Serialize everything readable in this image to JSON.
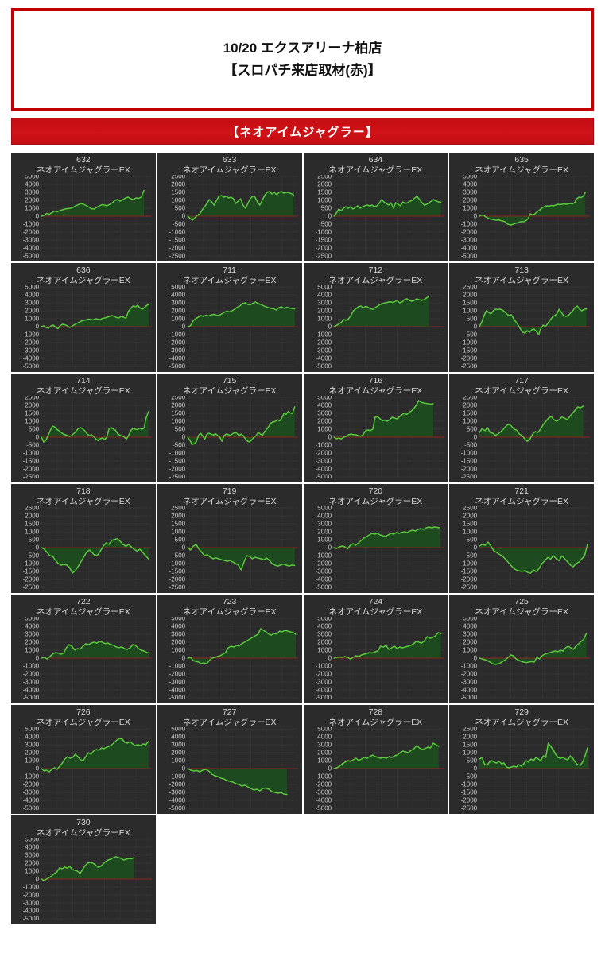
{
  "header": {
    "title_line1": "10/20 エクスアリーナ柏店",
    "title_line2": "【スロパチ来店取材(赤)】",
    "border_color": "#c00000"
  },
  "banner": {
    "label": "【ネオアイムジャグラー】",
    "bg": "#c30d12"
  },
  "machine_name": "ネオアイムジャグラーEX",
  "colors": {
    "tile_bg": "#2b2b2b",
    "gridline": "#3e3e3e",
    "axis_text": "#c9c9c9",
    "zero_line": "#8b2420",
    "series_line": "#5bc83e",
    "series_fill": "#1e4a1f"
  },
  "chart_data": [
    {
      "machine": "632",
      "type": "line",
      "ylim": [
        -5000,
        5000
      ],
      "ystep": 1000,
      "xend": 0.93,
      "values": [
        0,
        100,
        350,
        250,
        450,
        650,
        550,
        700,
        800,
        900,
        950,
        1000,
        1100,
        1300,
        1450,
        1600,
        1500,
        1350,
        1150,
        950,
        900,
        1100,
        1300,
        1450,
        1400,
        1300,
        1500,
        1700,
        2000,
        2100,
        1900,
        2100,
        2300,
        2400,
        2200,
        2100,
        2300,
        2250,
        2400,
        3250
      ]
    },
    {
      "machine": "633",
      "type": "line",
      "ylim": [
        -2500,
        2500
      ],
      "ystep": 500,
      "xend": 0.96,
      "values": [
        0,
        -150,
        -250,
        -100,
        50,
        150,
        400,
        600,
        800,
        1050,
        900,
        700,
        1000,
        1250,
        1300,
        1200,
        1250,
        1150,
        1200,
        1100,
        800,
        950,
        1100,
        700,
        500,
        800,
        1100,
        1250,
        1200,
        900,
        700,
        1000,
        1300,
        1500,
        1550,
        1400,
        1500,
        1350,
        1500,
        1550,
        1450,
        1500,
        1480,
        1420,
        1350
      ]
    },
    {
      "machine": "634",
      "type": "line",
      "ylim": [
        -2500,
        2500
      ],
      "ystep": 500,
      "xend": 0.97,
      "values": [
        0,
        200,
        450,
        350,
        500,
        600,
        500,
        600,
        450,
        550,
        650,
        500,
        600,
        650,
        700,
        650,
        700,
        600,
        650,
        800,
        1050,
        900,
        800,
        700,
        850,
        500,
        850,
        750,
        650,
        900,
        800,
        850,
        950,
        1000,
        1150,
        1250,
        1050,
        850,
        700,
        750,
        850,
        950,
        1050,
        950,
        900,
        880
      ]
    },
    {
      "machine": "635",
      "type": "line",
      "ylim": [
        -5000,
        5000
      ],
      "ystep": 1000,
      "xend": 0.96,
      "values": [
        0,
        150,
        100,
        -100,
        -250,
        -350,
        -400,
        -450,
        -500,
        -450,
        -550,
        -600,
        -700,
        -950,
        -1050,
        -1100,
        -1000,
        -900,
        -850,
        -750,
        -650,
        -700,
        -550,
        -300,
        300,
        150,
        250,
        500,
        700,
        900,
        1100,
        1250,
        1300,
        1250,
        1350,
        1300,
        1400,
        1500,
        1450,
        1500,
        1550,
        1500,
        1550,
        1600,
        1550,
        1700,
        2200,
        2400,
        2350,
        2500,
        3000
      ]
    },
    {
      "machine": "636",
      "type": "line",
      "ylim": [
        -5000,
        5000
      ],
      "ystep": 1000,
      "xend": 0.98,
      "values": [
        0,
        100,
        -100,
        -200,
        100,
        200,
        -50,
        -250,
        150,
        300,
        250,
        100,
        -100,
        50,
        250,
        400,
        550,
        700,
        800,
        850,
        950,
        900,
        850,
        1000,
        950,
        900,
        1050,
        1100,
        1200,
        1300,
        1400,
        1300,
        1150,
        1100,
        1300,
        1200,
        1050,
        1900,
        2300,
        2600,
        2500,
        2700,
        2350,
        2200,
        2450,
        2700,
        2850
      ]
    },
    {
      "machine": "711",
      "type": "line",
      "ylim": [
        -5000,
        5000
      ],
      "ystep": 1000,
      "xend": 0.97,
      "values": [
        0,
        100,
        700,
        1000,
        1200,
        1400,
        1300,
        1450,
        1350,
        1500,
        1550,
        1450,
        1400,
        1600,
        1800,
        1950,
        1850,
        2000,
        2200,
        2450,
        2600,
        2900,
        3000,
        2800,
        2750,
        2950,
        3100,
        2900,
        2800,
        2650,
        2500,
        2400,
        2300,
        2250,
        2100,
        2400,
        2500,
        2300,
        2450,
        2350,
        2300,
        2250
      ]
    },
    {
      "machine": "712",
      "type": "line",
      "ylim": [
        -5000,
        5000
      ],
      "ystep": 1000,
      "xend": 0.86,
      "values": [
        0,
        150,
        350,
        550,
        900,
        800,
        1000,
        1450,
        2000,
        2250,
        2500,
        2600,
        2400,
        2550,
        2450,
        2250,
        2200,
        2400,
        2600,
        2800,
        2900,
        3000,
        3050,
        3150,
        3050,
        3150,
        3300,
        3000,
        3100,
        3400,
        3500,
        3300,
        3200,
        3300,
        3500,
        3400,
        3300,
        3400,
        3600,
        3800
      ]
    },
    {
      "machine": "713",
      "type": "line",
      "ylim": [
        -2500,
        2500
      ],
      "ystep": 500,
      "xend": 0.97,
      "values": [
        0,
        300,
        700,
        1000,
        900,
        800,
        1000,
        1100,
        1080,
        1100,
        1050,
        950,
        800,
        700,
        750,
        500,
        300,
        100,
        -150,
        -350,
        -400,
        -250,
        -350,
        -200,
        -150,
        -300,
        -500,
        -100,
        100,
        0,
        200,
        400,
        600,
        700,
        800,
        1100,
        900,
        700,
        650,
        700,
        850,
        1000,
        1200,
        1300,
        1100,
        1000,
        1100,
        1120
      ]
    },
    {
      "machine": "714",
      "type": "line",
      "ylim": [
        -2500,
        2500
      ],
      "ystep": 500,
      "xend": 0.97,
      "values": [
        0,
        -300,
        -200,
        100,
        400,
        700,
        650,
        500,
        400,
        300,
        200,
        150,
        100,
        50,
        120,
        250,
        400,
        550,
        600,
        520,
        380,
        200,
        100,
        150,
        30,
        -120,
        -220,
        -100,
        -50,
        -150,
        20,
        550,
        600,
        500,
        430,
        200,
        130,
        80,
        0,
        -120,
        120,
        420,
        560,
        500,
        480,
        560,
        500,
        560,
        1200,
        1600
      ]
    },
    {
      "machine": "715",
      "type": "line",
      "ylim": [
        -2500,
        2500
      ],
      "ystep": 500,
      "xend": 0.97,
      "values": [
        0,
        -200,
        -450,
        -420,
        -300,
        100,
        250,
        80,
        -120,
        200,
        250,
        180,
        140,
        220,
        100,
        0,
        -260,
        100,
        200,
        160,
        100,
        220,
        300,
        240,
        100,
        200,
        90,
        -120,
        -260,
        -300,
        -160,
        0,
        100,
        300,
        200,
        120,
        350,
        500,
        700,
        900,
        950,
        1000,
        1100,
        1020,
        1200,
        1500,
        1430,
        1620,
        1520,
        1480,
        1900
      ]
    },
    {
      "machine": "716",
      "type": "line",
      "ylim": [
        -5000,
        5000
      ],
      "ystep": 1000,
      "xend": 0.9,
      "values": [
        0,
        -200,
        -120,
        -220,
        0,
        100,
        300,
        400,
        320,
        300,
        200,
        120,
        300,
        800,
        900,
        820,
        1000,
        2500,
        2600,
        2300,
        2050,
        2150,
        2000,
        2200,
        2500,
        2400,
        2300,
        2550,
        2800,
        3000,
        2850,
        3100,
        3300,
        3600,
        4000,
        4600,
        4400,
        4300,
        4250,
        4200,
        4150,
        4200
      ]
    },
    {
      "machine": "717",
      "type": "line",
      "ylim": [
        -2500,
        2500
      ],
      "ystep": 500,
      "xend": 0.94,
      "values": [
        300,
        550,
        400,
        600,
        300,
        250,
        120,
        200,
        350,
        500,
        700,
        820,
        700,
        500,
        440,
        200,
        100,
        -100,
        -260,
        -120,
        200,
        350,
        300,
        500,
        800,
        1000,
        1200,
        1300,
        1100,
        1000,
        1100,
        1260,
        1200,
        1100,
        1300,
        1500,
        1700,
        1900,
        1850,
        1950
      ]
    },
    {
      "machine": "718",
      "type": "line",
      "ylim": [
        -2500,
        2500
      ],
      "ystep": 500,
      "xend": 0.97,
      "values": [
        0,
        -100,
        -300,
        -500,
        -550,
        -800,
        -1000,
        -1100,
        -1050,
        -1100,
        -1250,
        -1600,
        -1450,
        -1200,
        -900,
        -600,
        -300,
        -150,
        -300,
        -500,
        -450,
        -200,
        100,
        300,
        200,
        450,
        520,
        560,
        400,
        200,
        80,
        200,
        40,
        -120,
        -220,
        -100,
        -300,
        -500,
        -700
      ]
    },
    {
      "machine": "719",
      "type": "line",
      "ylim": [
        -2500,
        2500
      ],
      "ystep": 500,
      "xend": 0.97,
      "values": [
        0,
        -150,
        100,
        200,
        -100,
        -300,
        -500,
        -450,
        -600,
        -700,
        -640,
        -700,
        -760,
        -800,
        -860,
        -800,
        -900,
        -1000,
        -1100,
        -1400,
        -900,
        -500,
        -560,
        -700,
        -600,
        -660,
        -700,
        -760,
        -650,
        -800,
        -1000,
        -1100,
        -1160,
        -1100,
        -1040,
        -1100,
        -1160,
        -1100,
        -1120
      ]
    },
    {
      "machine": "720",
      "type": "line",
      "ylim": [
        -5000,
        5000
      ],
      "ystep": 1000,
      "xend": 0.96,
      "values": [
        0,
        -100,
        100,
        200,
        100,
        -150,
        300,
        500,
        300,
        600,
        900,
        1200,
        1400,
        1600,
        1800,
        1700,
        1800,
        1600,
        1500,
        1400,
        1600,
        1800,
        1700,
        1900,
        1800,
        1900,
        2000,
        1900,
        2100,
        2200,
        2100,
        2300,
        2400,
        2300,
        2500,
        2600,
        2500,
        2600,
        2550,
        2500
      ]
    },
    {
      "machine": "721",
      "type": "line",
      "ylim": [
        -2500,
        2500
      ],
      "ystep": 500,
      "xend": 0.98,
      "values": [
        100,
        200,
        150,
        350,
        100,
        -200,
        -300,
        -420,
        -520,
        -700,
        -900,
        -1100,
        -1300,
        -1420,
        -1460,
        -1500,
        -1440,
        -1560,
        -1600,
        -1400,
        -1520,
        -1300,
        -1000,
        -820,
        -620,
        -720,
        -500,
        -700,
        -820,
        -520,
        -700,
        -900,
        -1100,
        -1200,
        -1000,
        -900,
        -700,
        -500,
        200
      ]
    },
    {
      "machine": "722",
      "type": "line",
      "ylim": [
        -5000,
        5000
      ],
      "ystep": 1000,
      "xend": 0.98,
      "values": [
        0,
        100,
        -100,
        200,
        500,
        700,
        640,
        500,
        620,
        1300,
        1700,
        1500,
        1020,
        1200,
        1120,
        1500,
        1800,
        1700,
        1900,
        2000,
        1900,
        2100,
        2000,
        1820,
        1900,
        1700,
        1620,
        1400,
        1320,
        1420,
        1200,
        1100,
        1300,
        1700,
        1600,
        1220,
        1000,
        900,
        720,
        650
      ]
    },
    {
      "machine": "723",
      "type": "line",
      "ylim": [
        -5000,
        5000
      ],
      "ystep": 1000,
      "xend": 0.98,
      "values": [
        0,
        100,
        -300,
        -420,
        -500,
        -700,
        -600,
        -720,
        -300,
        0,
        100,
        200,
        300,
        500,
        700,
        1300,
        1500,
        1400,
        1600,
        1520,
        1800,
        2000,
        2200,
        2400,
        2600,
        2800,
        3000,
        3700,
        3500,
        3300,
        3020,
        2900,
        3100,
        3000,
        3400,
        3300,
        3500,
        3400,
        3300,
        3220,
        3000
      ]
    },
    {
      "machine": "724",
      "type": "line",
      "ylim": [
        -5000,
        5000
      ],
      "ystep": 1000,
      "xend": 0.97,
      "values": [
        0,
        100,
        150,
        100,
        200,
        100,
        -120,
        100,
        300,
        200,
        400,
        500,
        600,
        700,
        640,
        800,
        900,
        1500,
        1400,
        1600,
        1100,
        1300,
        1500,
        1220,
        1400,
        1300,
        1400,
        1500,
        1600,
        1800,
        2100,
        2000,
        1900,
        2200,
        2700,
        2500,
        2600,
        2800,
        3200,
        3100
      ]
    },
    {
      "machine": "725",
      "type": "line",
      "ylim": [
        -5000,
        5000
      ],
      "ystep": 1000,
      "xend": 0.97,
      "values": [
        0,
        -100,
        -200,
        -320,
        -500,
        -700,
        -800,
        -740,
        -600,
        -400,
        -200,
        100,
        400,
        300,
        -100,
        -300,
        -400,
        -500,
        -560,
        -500,
        -440,
        -500,
        100,
        -100,
        300,
        500,
        600,
        700,
        800,
        900,
        800,
        1000,
        900,
        1300,
        1500,
        1300,
        1100,
        1500,
        1800,
        2100,
        2400,
        3100
      ]
    },
    {
      "machine": "726",
      "type": "line",
      "ylim": [
        -5000,
        5000
      ],
      "ystep": 1000,
      "xend": 0.97,
      "values": [
        0,
        -300,
        -200,
        -400,
        -100,
        100,
        -100,
        300,
        700,
        1200,
        1500,
        1300,
        1400,
        1800,
        1500,
        1100,
        1000,
        1500,
        2000,
        1800,
        2200,
        2400,
        2300,
        2600,
        2500,
        2700,
        2800,
        3000,
        3300,
        3600,
        3800,
        3700,
        3300,
        3200,
        3400,
        3100,
        2900,
        3000,
        2900,
        3100,
        3000,
        3400
      ]
    },
    {
      "machine": "727",
      "type": "line",
      "ylim": [
        -5000,
        5000
      ],
      "ystep": 1000,
      "xend": 0.9,
      "values": [
        0,
        -200,
        -300,
        -250,
        -400,
        -200,
        -100,
        -300,
        -700,
        -900,
        -1000,
        -1200,
        -1300,
        -1500,
        -1600,
        -1700,
        -1900,
        -2000,
        -2200,
        -2100,
        -2300,
        -2500,
        -2700,
        -2600,
        -2800,
        -2500,
        -2450,
        -2600,
        -2900,
        -3000,
        -3100,
        -3000,
        -3200,
        -3250
      ]
    },
    {
      "machine": "728",
      "type": "line",
      "ylim": [
        -5000,
        5000
      ],
      "ystep": 1000,
      "xend": 0.95,
      "values": [
        0,
        100,
        300,
        600,
        800,
        1000,
        900,
        1100,
        1300,
        1000,
        1200,
        1400,
        1300,
        1500,
        1700,
        1500,
        1400,
        1300,
        1400,
        1300,
        1500,
        1400,
        1600,
        1700,
        2000,
        2200,
        2100,
        2000,
        2300,
        2500,
        2900,
        2600,
        2400,
        2500,
        2700,
        2600,
        3200,
        3000,
        2800
      ]
    },
    {
      "machine": "729",
      "type": "line",
      "ylim": [
        -2500,
        2500
      ],
      "ystep": 500,
      "xend": 0.98,
      "values": [
        600,
        700,
        300,
        200,
        400,
        500,
        400,
        350,
        450,
        300,
        350,
        100,
        50,
        100,
        150,
        100,
        250,
        150,
        300,
        500,
        400,
        600,
        500,
        700,
        600,
        500,
        800,
        700,
        1600,
        1400,
        1200,
        900,
        700,
        650,
        700,
        600,
        550,
        800,
        650,
        400,
        250,
        200,
        400,
        800,
        1300
      ]
    },
    {
      "machine": "730",
      "type": "line",
      "ylim": [
        -5000,
        5000
      ],
      "ystep": 1000,
      "xend": 0.84,
      "values": [
        0,
        -200,
        0,
        200,
        400,
        700,
        900,
        1400,
        1300,
        1500,
        1400,
        1600,
        1200,
        1100,
        1000,
        700,
        1200,
        1700,
        2000,
        2100,
        2000,
        1800,
        1500,
        1600,
        1900,
        2200,
        2400,
        2500,
        2700,
        2800,
        2700,
        2600,
        2400,
        2500,
        2600,
        2550,
        2700
      ]
    }
  ]
}
